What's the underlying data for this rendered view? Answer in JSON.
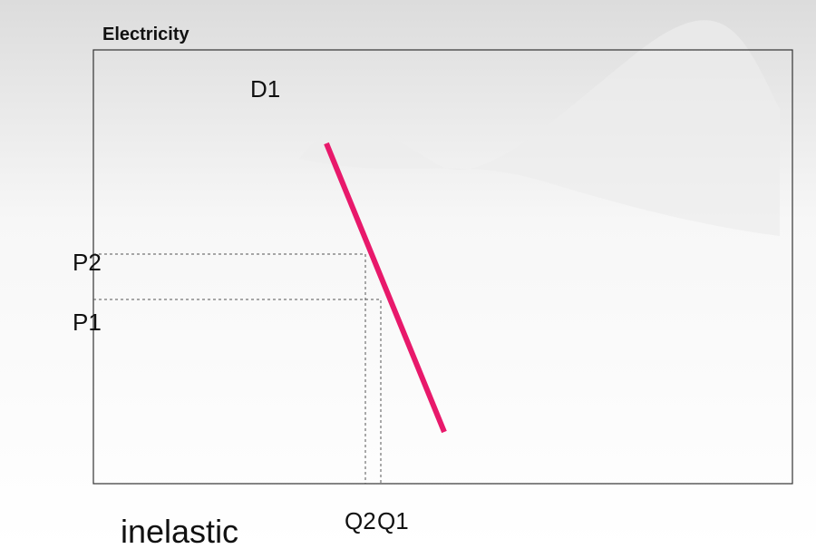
{
  "title": "Electricity",
  "curve_label": "D1",
  "price_labels": [
    "P2",
    "P1"
  ],
  "quantity_labels": [
    "Q2",
    "Q1"
  ],
  "caption": "inelastic"
}
